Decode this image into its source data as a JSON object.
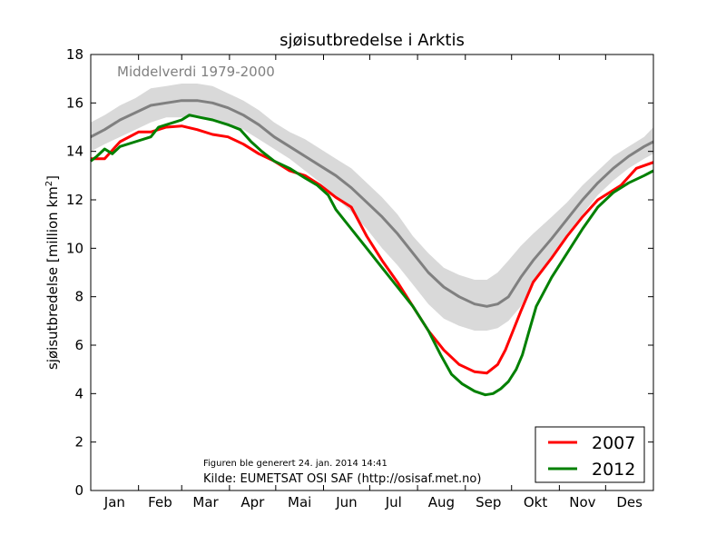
{
  "chart_data": {
    "type": "line",
    "title": "sjøisutbredelse i Arktis",
    "ylabel_main": "sjøisutbredelse [million km",
    "ylabel_sup": "2",
    "ylabel_end": "]",
    "ylim": [
      0,
      18
    ],
    "yticks": [
      "0",
      "2",
      "4",
      "6",
      "8",
      "10",
      "12",
      "14",
      "16",
      "18"
    ],
    "xlim": [
      1,
      366
    ],
    "months": [
      "Jan",
      "Feb",
      "Mar",
      "Apr",
      "Mai",
      "Jun",
      "Jul",
      "Aug",
      "Sep",
      "Okt",
      "Nov",
      "Des"
    ],
    "grid": false,
    "legend_position": "bottom-right",
    "mean_label": "Middelverdi 1979-2000",
    "note_generated": "Figuren ble generert 24. jan. 2014 14:41",
    "note_source": "Kilde: EUMETSAT OSI SAF (http://osisaf.met.no)",
    "series": [
      {
        "name": "2007",
        "color": "#ff0000",
        "points": [
          [
            1,
            13.7
          ],
          [
            10,
            13.7
          ],
          [
            20,
            14.4
          ],
          [
            32,
            14.8
          ],
          [
            40,
            14.8
          ],
          [
            50,
            15.0
          ],
          [
            60,
            15.05
          ],
          [
            70,
            14.9
          ],
          [
            80,
            14.7
          ],
          [
            90,
            14.6
          ],
          [
            100,
            14.3
          ],
          [
            110,
            13.9
          ],
          [
            120,
            13.6
          ],
          [
            130,
            13.2
          ],
          [
            140,
            13.0
          ],
          [
            150,
            12.6
          ],
          [
            160,
            12.1
          ],
          [
            170,
            11.7
          ],
          [
            180,
            10.5
          ],
          [
            190,
            9.5
          ],
          [
            200,
            8.6
          ],
          [
            210,
            7.6
          ],
          [
            220,
            6.6
          ],
          [
            230,
            5.8
          ],
          [
            240,
            5.2
          ],
          [
            250,
            4.9
          ],
          [
            258,
            4.85
          ],
          [
            265,
            5.2
          ],
          [
            270,
            5.8
          ],
          [
            275,
            6.6
          ],
          [
            280,
            7.4
          ],
          [
            288,
            8.6
          ],
          [
            300,
            9.6
          ],
          [
            310,
            10.5
          ],
          [
            320,
            11.3
          ],
          [
            330,
            12.0
          ],
          [
            345,
            12.6
          ],
          [
            355,
            13.3
          ],
          [
            366,
            13.55
          ]
        ]
      },
      {
        "name": "2012",
        "color": "#008000",
        "points": [
          [
            1,
            13.6
          ],
          [
            5,
            13.8
          ],
          [
            10,
            14.1
          ],
          [
            15,
            13.9
          ],
          [
            20,
            14.2
          ],
          [
            30,
            14.4
          ],
          [
            40,
            14.6
          ],
          [
            45,
            15.0
          ],
          [
            55,
            15.2
          ],
          [
            60,
            15.3
          ],
          [
            65,
            15.5
          ],
          [
            72,
            15.4
          ],
          [
            80,
            15.3
          ],
          [
            90,
            15.1
          ],
          [
            98,
            14.9
          ],
          [
            105,
            14.4
          ],
          [
            112,
            14.0
          ],
          [
            120,
            13.6
          ],
          [
            130,
            13.3
          ],
          [
            140,
            12.9
          ],
          [
            148,
            12.6
          ],
          [
            155,
            12.2
          ],
          [
            160,
            11.6
          ],
          [
            170,
            10.8
          ],
          [
            180,
            10.0
          ],
          [
            190,
            9.2
          ],
          [
            200,
            8.4
          ],
          [
            210,
            7.6
          ],
          [
            220,
            6.6
          ],
          [
            228,
            5.6
          ],
          [
            235,
            4.8
          ],
          [
            242,
            4.4
          ],
          [
            250,
            4.1
          ],
          [
            257,
            3.95
          ],
          [
            262,
            4.0
          ],
          [
            267,
            4.2
          ],
          [
            272,
            4.5
          ],
          [
            277,
            5.0
          ],
          [
            281,
            5.6
          ],
          [
            285,
            6.5
          ],
          [
            290,
            7.6
          ],
          [
            300,
            8.8
          ],
          [
            310,
            9.8
          ],
          [
            320,
            10.8
          ],
          [
            330,
            11.7
          ],
          [
            340,
            12.3
          ],
          [
            350,
            12.7
          ],
          [
            360,
            13.0
          ],
          [
            366,
            13.2
          ]
        ]
      },
      {
        "name": "Middelverdi 1979-2000",
        "color": "#808080",
        "points": [
          [
            1,
            14.6
          ],
          [
            10,
            14.9
          ],
          [
            20,
            15.3
          ],
          [
            30,
            15.6
          ],
          [
            40,
            15.9
          ],
          [
            50,
            16.0
          ],
          [
            60,
            16.1
          ],
          [
            70,
            16.1
          ],
          [
            80,
            16.0
          ],
          [
            90,
            15.8
          ],
          [
            100,
            15.5
          ],
          [
            110,
            15.1
          ],
          [
            120,
            14.6
          ],
          [
            130,
            14.2
          ],
          [
            140,
            13.8
          ],
          [
            150,
            13.4
          ],
          [
            160,
            13.0
          ],
          [
            170,
            12.5
          ],
          [
            180,
            11.9
          ],
          [
            190,
            11.3
          ],
          [
            200,
            10.6
          ],
          [
            210,
            9.8
          ],
          [
            220,
            9.0
          ],
          [
            230,
            8.4
          ],
          [
            240,
            8.0
          ],
          [
            250,
            7.7
          ],
          [
            258,
            7.6
          ],
          [
            265,
            7.7
          ],
          [
            272,
            8.0
          ],
          [
            280,
            8.8
          ],
          [
            288,
            9.5
          ],
          [
            300,
            10.4
          ],
          [
            310,
            11.2
          ],
          [
            320,
            12.0
          ],
          [
            330,
            12.7
          ],
          [
            340,
            13.3
          ],
          [
            350,
            13.8
          ],
          [
            360,
            14.2
          ],
          [
            366,
            14.4
          ]
        ]
      }
    ],
    "band": {
      "color": "#d9d9d9",
      "upper": [
        [
          1,
          15.2
        ],
        [
          10,
          15.5
        ],
        [
          20,
          15.9
        ],
        [
          30,
          16.2
        ],
        [
          40,
          16.6
        ],
        [
          50,
          16.7
        ],
        [
          60,
          16.8
        ],
        [
          70,
          16.8
        ],
        [
          80,
          16.7
        ],
        [
          90,
          16.4
        ],
        [
          100,
          16.1
        ],
        [
          110,
          15.7
        ],
        [
          120,
          15.2
        ],
        [
          130,
          14.8
        ],
        [
          140,
          14.5
        ],
        [
          150,
          14.1
        ],
        [
          160,
          13.7
        ],
        [
          170,
          13.3
        ],
        [
          180,
          12.7
        ],
        [
          190,
          12.1
        ],
        [
          200,
          11.4
        ],
        [
          210,
          10.5
        ],
        [
          220,
          9.8
        ],
        [
          230,
          9.2
        ],
        [
          240,
          8.9
        ],
        [
          250,
          8.7
        ],
        [
          258,
          8.7
        ],
        [
          265,
          9.0
        ],
        [
          272,
          9.5
        ],
        [
          280,
          10.1
        ],
        [
          288,
          10.6
        ],
        [
          300,
          11.3
        ],
        [
          310,
          11.9
        ],
        [
          320,
          12.6
        ],
        [
          330,
          13.2
        ],
        [
          340,
          13.8
        ],
        [
          350,
          14.2
        ],
        [
          360,
          14.6
        ],
        [
          366,
          15.0
        ]
      ],
      "lower": [
        [
          1,
          14.0
        ],
        [
          10,
          14.3
        ],
        [
          20,
          14.6
        ],
        [
          30,
          14.9
        ],
        [
          40,
          15.2
        ],
        [
          50,
          15.4
        ],
        [
          60,
          15.4
        ],
        [
          70,
          15.4
        ],
        [
          80,
          15.3
        ],
        [
          90,
          15.1
        ],
        [
          100,
          14.9
        ],
        [
          110,
          14.5
        ],
        [
          120,
          14.1
        ],
        [
          130,
          13.7
        ],
        [
          140,
          13.2
        ],
        [
          150,
          12.7
        ],
        [
          160,
          12.1
        ],
        [
          170,
          11.5
        ],
        [
          180,
          10.8
        ],
        [
          190,
          10.0
        ],
        [
          200,
          9.3
        ],
        [
          210,
          8.5
        ],
        [
          220,
          7.7
        ],
        [
          230,
          7.1
        ],
        [
          240,
          6.8
        ],
        [
          250,
          6.6
        ],
        [
          258,
          6.6
        ],
        [
          265,
          6.7
        ],
        [
          272,
          7.0
        ],
        [
          280,
          7.6
        ],
        [
          288,
          8.6
        ],
        [
          300,
          9.7
        ],
        [
          310,
          10.6
        ],
        [
          320,
          11.4
        ],
        [
          330,
          12.2
        ],
        [
          340,
          12.8
        ],
        [
          350,
          13.3
        ],
        [
          360,
          13.7
        ],
        [
          366,
          13.9
        ]
      ]
    }
  }
}
